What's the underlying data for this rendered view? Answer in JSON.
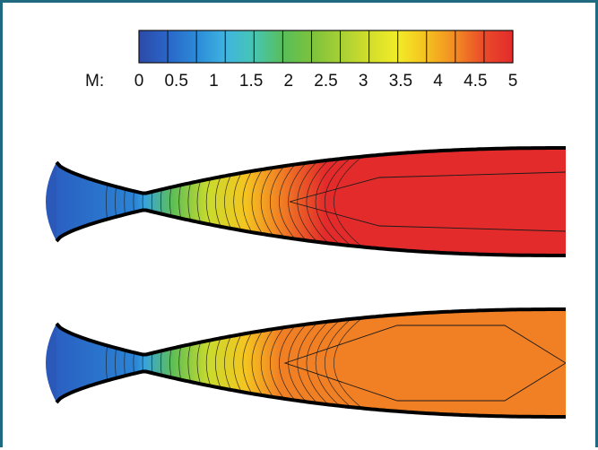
{
  "colorbar": {
    "title": "M:",
    "ticks": [
      "0",
      "0.5",
      "1",
      "1.5",
      "2",
      "2.5",
      "3",
      "3.5",
      "4",
      "4.5",
      "5"
    ],
    "range": [
      0,
      5
    ],
    "levels": 13,
    "colors": [
      "#2c4aa8",
      "#2a66c8",
      "#2b8ad8",
      "#3fb4e0",
      "#46c6b2",
      "#58be5a",
      "#7cc23c",
      "#a6cf35",
      "#d2de2b",
      "#f2ec28",
      "#f5c01f",
      "#f28b23",
      "#ea4a2a",
      "#e32b2b"
    ]
  },
  "frame_color": "#1f6a80",
  "nozzles": [
    {
      "name": "top",
      "core_color": "#e8302b",
      "outlet_mach": 5.0
    },
    {
      "name": "bottom",
      "core_color": "#f07a2b",
      "outlet_mach": 4.3
    }
  ]
}
